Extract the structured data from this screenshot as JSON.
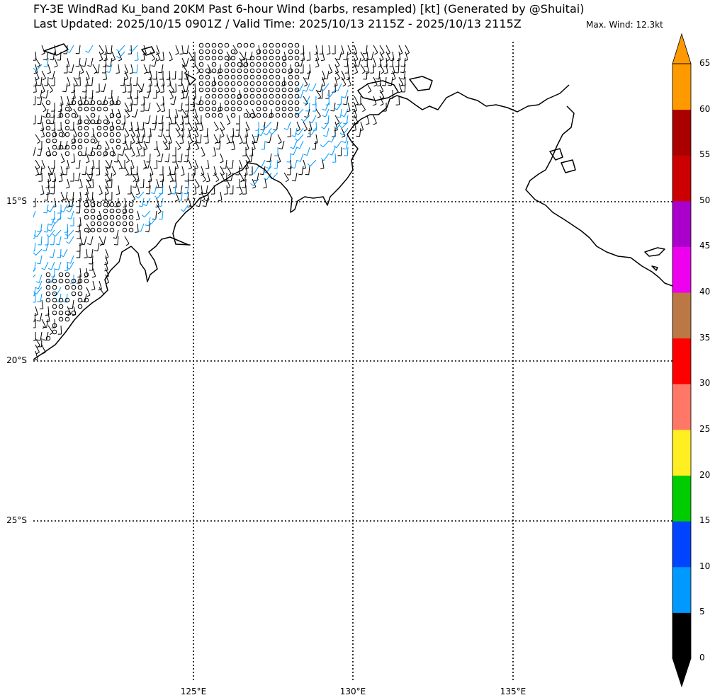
{
  "title_line1": "FY-3E WindRad Ku_band 20KM Past 6-hour Wind (barbs, resampled) [kt] (Generated by @Shuitai)",
  "title_line2": "Last Updated: 2025/10/15 0901Z / Valid Time: 2025/10/13 2115Z - 2025/10/13 2115Z",
  "max_wind": "Max. Wind: 12.3kt",
  "map": {
    "lat_labels": [
      "15°S",
      "20°S",
      "25°S"
    ],
    "lon_labels": [
      "125°E",
      "130°E",
      "135°E"
    ],
    "lon_range": [
      120,
      140
    ],
    "lat_range": [
      -30,
      -10
    ],
    "grid_style": "dotted"
  },
  "colorbar": {
    "tick_labels": [
      "0",
      "5",
      "10",
      "15",
      "20",
      "25",
      "30",
      "35",
      "40",
      "45",
      "50",
      "55",
      "60",
      "65"
    ],
    "colors": [
      "#000000",
      "#0099ff",
      "#0044ff",
      "#00cc00",
      "#ffee22",
      "#ff7766",
      "#ff0000",
      "#bb7744",
      "#ee00ee",
      "#aa00cc",
      "#cc0000",
      "#aa0000",
      "#ff9900"
    ],
    "extend": "both"
  },
  "barb_colors": {
    "calm_or_light": "#000000",
    "five_to_ten": "#0099ff"
  }
}
